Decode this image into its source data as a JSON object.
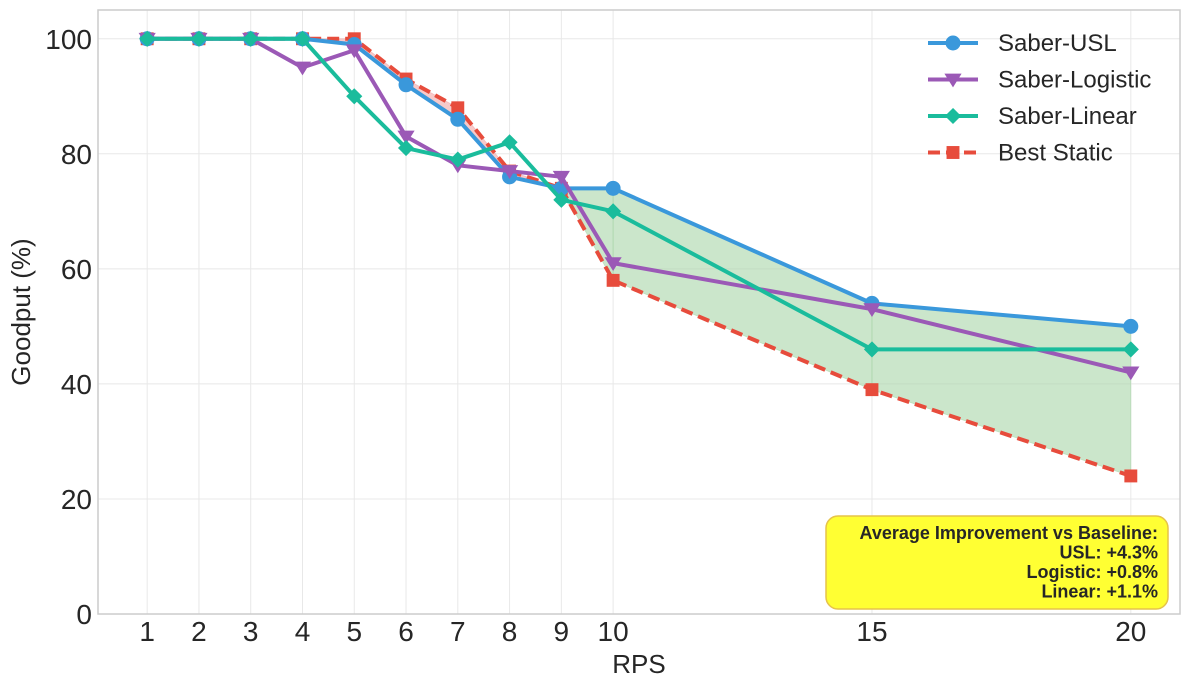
{
  "chart_data": {
    "type": "line",
    "xlabel": "RPS",
    "ylabel": "Goodput (%)",
    "x": [
      1,
      2,
      3,
      4,
      5,
      6,
      7,
      8,
      9,
      10,
      15,
      20
    ],
    "x_ticks": [
      "1",
      "2",
      "3",
      "4",
      "5",
      "6",
      "7",
      "8",
      "9",
      "10",
      "15",
      "20"
    ],
    "y_ticks": [
      "0",
      "20",
      "40",
      "60",
      "80",
      "100"
    ],
    "xlim": [
      0.05,
      20.95
    ],
    "ylim": [
      0,
      105
    ],
    "grid": true,
    "legend_position": "top-right",
    "series": [
      {
        "name": "Saber-USL",
        "color": "#3a98db",
        "marker": "circle",
        "line": "solid",
        "values": [
          100,
          100,
          100,
          100,
          99,
          92,
          86,
          76,
          74,
          74,
          54,
          50
        ]
      },
      {
        "name": "Saber-Logistic",
        "color": "#9b59b6",
        "marker": "triangle-down",
        "line": "solid",
        "values": [
          100,
          100,
          100,
          95,
          98,
          83,
          78,
          77,
          76,
          61,
          53,
          42
        ]
      },
      {
        "name": "Saber-Linear",
        "color": "#1abc9c",
        "marker": "diamond",
        "line": "solid",
        "values": [
          100,
          100,
          100,
          100,
          90,
          81,
          79,
          82,
          72,
          70,
          46,
          46
        ]
      },
      {
        "name": "Best Static",
        "color": "#e74c3c",
        "marker": "square",
        "line": "dashed",
        "values": [
          100,
          100,
          100,
          100,
          100,
          93,
          88,
          77,
          74,
          58,
          39,
          24
        ]
      }
    ],
    "fill_between": {
      "upper": "Saber-USL",
      "lower": "Best Static",
      "improvement_color": "#a9d6a9",
      "deficit_color": "#f2a6a6"
    },
    "annotation": {
      "lines": [
        "Average Improvement vs Baseline:",
        "USL: +4.3%",
        "Logistic: +0.8%",
        "Linear: +1.1%"
      ],
      "background": "#ffff33",
      "border": "#e6c34a"
    }
  }
}
